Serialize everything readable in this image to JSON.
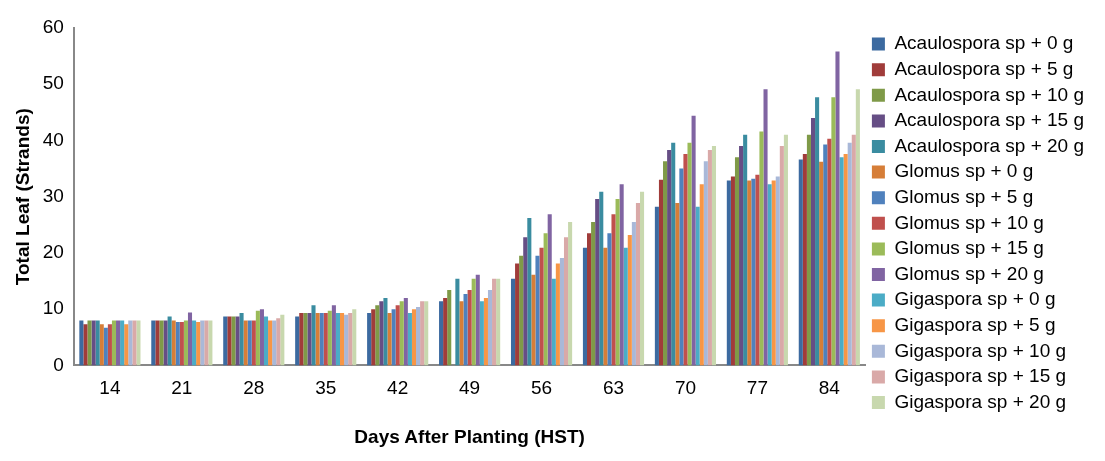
{
  "chart_data": {
    "type": "bar",
    "xlabel": "Days After Planting (HST)",
    "ylabel": "Total Leaf (Strands)",
    "categories": [
      "14",
      "21",
      "28",
      "35",
      "42",
      "49",
      "56",
      "63",
      "70",
      "77",
      "84"
    ],
    "ylim": [
      0,
      60
    ],
    "yticks": [
      0,
      10,
      20,
      30,
      40,
      50,
      60
    ],
    "grid": false,
    "legend": "right",
    "series": [
      {
        "name": "Acaulospora sp + 0 g",
        "color": "#3c6aa0",
        "values": [
          8,
          8,
          8.7,
          8.7,
          9.3,
          11.4,
          15.4,
          20.9,
          28.2,
          32.9,
          36.6
        ]
      },
      {
        "name": "Acaulospora sp + 5 g",
        "color": "#a03c3a",
        "values": [
          7.3,
          8,
          8.7,
          9.3,
          10,
          12,
          18.1,
          23.5,
          33,
          33.6,
          37.6
        ]
      },
      {
        "name": "Acaulospora sp + 10 g",
        "color": "#7f9a48",
        "values": [
          8,
          8,
          8.7,
          9.3,
          10.7,
          13.4,
          19.5,
          25.5,
          36.3,
          37,
          41
        ]
      },
      {
        "name": "Acaulospora sp + 15 g",
        "color": "#664e85",
        "values": [
          8,
          8,
          8.7,
          9.3,
          11.4,
          null,
          22.8,
          29.6,
          38.3,
          39,
          44
        ]
      },
      {
        "name": "Acaulospora sp + 20 g",
        "color": "#3a8ca0",
        "values": [
          8,
          8.7,
          9.3,
          10.7,
          12,
          15.4,
          26.2,
          30.9,
          39.6,
          41,
          47.7
        ]
      },
      {
        "name": "Glomus sp + 0 g",
        "color": "#d67e38",
        "values": [
          7.3,
          8,
          8,
          9.3,
          9.3,
          11.4,
          16.1,
          20.9,
          28.9,
          32.9,
          36.2
        ]
      },
      {
        "name": "Glomus sp + 5 g",
        "color": "#4f81bd",
        "values": [
          6.7,
          7.7,
          8,
          9.3,
          10,
          12.7,
          19.5,
          23.5,
          35,
          33.2,
          39.3
        ]
      },
      {
        "name": "Glomus sp + 10 g",
        "color": "#c0504d",
        "values": [
          7.3,
          7.7,
          8,
          9.3,
          10.7,
          13.4,
          20.9,
          26.9,
          37.6,
          33.9,
          40.3
        ]
      },
      {
        "name": "Glomus sp + 15 g",
        "color": "#9bbb59",
        "values": [
          8,
          8,
          9.7,
          9.7,
          11.4,
          15.4,
          23.5,
          29.6,
          39.6,
          41.6,
          47.7
        ]
      },
      {
        "name": "Glomus sp + 20 g",
        "color": "#8064a2",
        "values": [
          8,
          9.4,
          10,
          10.7,
          12,
          16.1,
          26.9,
          32.2,
          44.4,
          49.1,
          55.8
        ]
      },
      {
        "name": "Gigaspora sp + 0 g",
        "color": "#4bacc6",
        "values": [
          8,
          8,
          8.7,
          9.3,
          9.3,
          11.4,
          15.4,
          20.9,
          28.2,
          32.2,
          37
        ]
      },
      {
        "name": "Gigaspora sp + 5 g",
        "color": "#f79646",
        "values": [
          7.3,
          7.7,
          8,
          9.3,
          10,
          12,
          18.1,
          23.2,
          32.2,
          32.9,
          37.6
        ]
      },
      {
        "name": "Gigaspora sp + 10 g",
        "color": "#a9b8d8",
        "values": [
          8,
          8,
          8,
          9,
          10.4,
          13.4,
          19.1,
          25.5,
          36.3,
          33.6,
          39.6
        ]
      },
      {
        "name": "Gigaspora sp + 15 g",
        "color": "#d9a9a8",
        "values": [
          8,
          8,
          8.4,
          9.3,
          11.4,
          15.4,
          22.8,
          28.9,
          38.3,
          39,
          41
        ]
      },
      {
        "name": "Gigaspora sp + 20 g",
        "color": "#c8d8ae",
        "values": [
          8,
          8,
          9,
          10,
          11.4,
          15.4,
          25.5,
          30.9,
          39,
          41,
          49.1
        ]
      }
    ]
  }
}
